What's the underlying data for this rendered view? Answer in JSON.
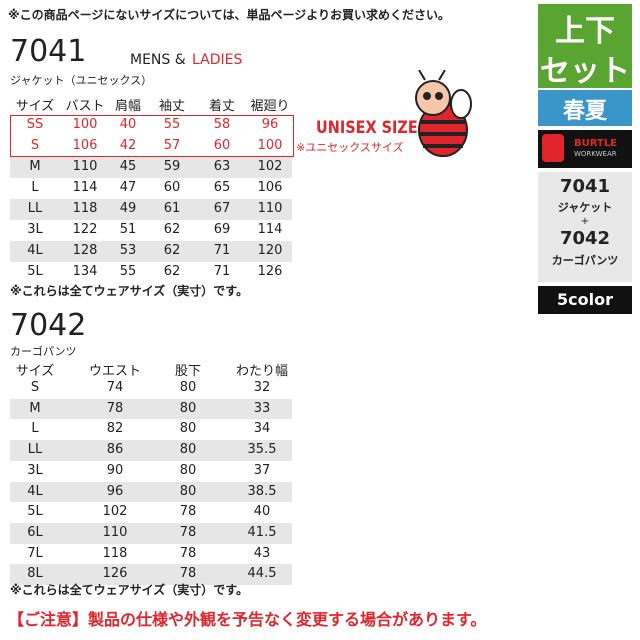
{
  "top_note": "※この商品ページにないサイズについては、単品ページよりお買い求めください。",
  "jacket": {
    "code": "7041",
    "tag_mens": "MENS &",
    "tag_ladies": "LADIES",
    "name": "ジャケット（ユニセックス）",
    "headers": [
      "サイズ",
      "バスト",
      "肩幅",
      "袖丈",
      "着丈",
      "裾廻り"
    ],
    "rows": [
      [
        "SS",
        "100",
        "40",
        "55",
        "58",
        "96"
      ],
      [
        "S",
        "106",
        "42",
        "57",
        "60",
        "100"
      ],
      [
        "M",
        "110",
        "45",
        "59",
        "63",
        "102"
      ],
      [
        "L",
        "114",
        "47",
        "60",
        "65",
        "106"
      ],
      [
        "LL",
        "118",
        "49",
        "61",
        "67",
        "110"
      ],
      [
        "3L",
        "122",
        "51",
        "62",
        "69",
        "114"
      ],
      [
        "4L",
        "128",
        "53",
        "62",
        "71",
        "120"
      ],
      [
        "5L",
        "134",
        "55",
        "62",
        "71",
        "126"
      ]
    ],
    "note": "※これらは全てウェアサイズ（実寸）です。",
    "badge": "UNISEX SIZE",
    "badge_note": "※ユニセックスサイズ"
  },
  "pants": {
    "code": "7042",
    "name": "カーゴパンツ",
    "headers": [
      "サイズ",
      "ウエスト",
      "股下",
      "わたり幅"
    ],
    "rows": [
      [
        "S",
        "74",
        "80",
        "32"
      ],
      [
        "M",
        "78",
        "80",
        "33"
      ],
      [
        "L",
        "82",
        "80",
        "34"
      ],
      [
        "LL",
        "86",
        "80",
        "35.5"
      ],
      [
        "3L",
        "90",
        "80",
        "37"
      ],
      [
        "4L",
        "96",
        "80",
        "38.5"
      ],
      [
        "5L",
        "102",
        "78",
        "40"
      ],
      [
        "6L",
        "110",
        "78",
        "41.5"
      ],
      [
        "7L",
        "118",
        "78",
        "43"
      ],
      [
        "8L",
        "126",
        "78",
        "44.5"
      ]
    ],
    "note": "※これらは全てウェアサイズ（実寸）です。"
  },
  "caution": "【ご注意】製品の仕様や外観を予告なく変更する場合があります。",
  "sidebar": {
    "set_line1": "上下",
    "set_line2": "セット",
    "season": "春夏",
    "brand": "BURTLE",
    "brand_sub": "WORKWEAR",
    "item1_code": "7041",
    "item1_name": "ジャケット",
    "plus": "+",
    "item2_code": "7042",
    "item2_name": "カーゴパンツ",
    "colors": "5color"
  }
}
